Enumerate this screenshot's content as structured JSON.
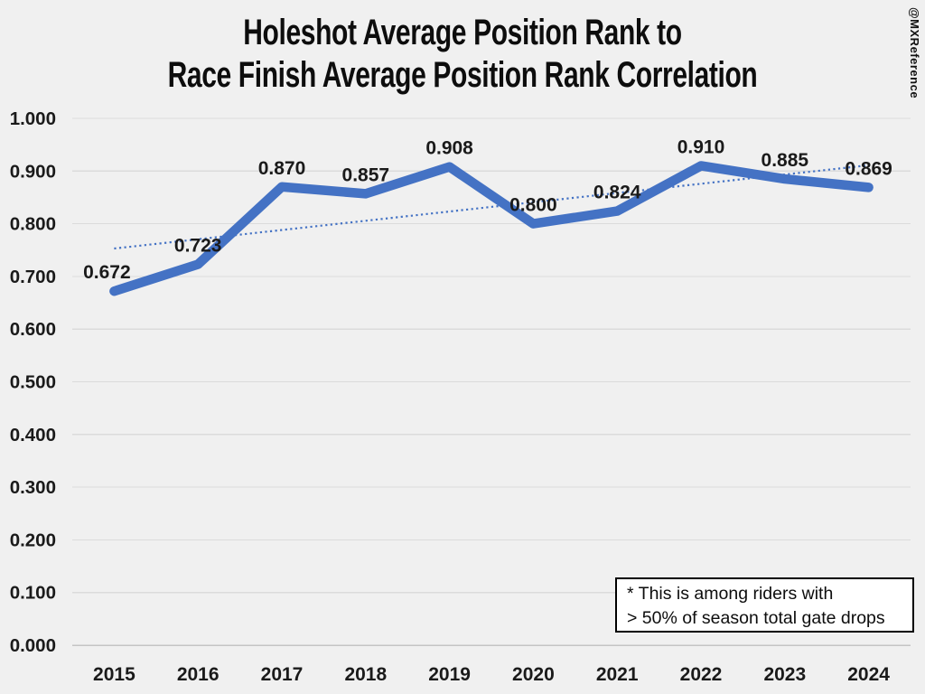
{
  "page": {
    "background": "#F0F0F0"
  },
  "header": {
    "title_line1": "Holeshot Average Position Rank to",
    "title_line2": "Race Finish Average Position Rank Correlation",
    "watermark": "@MXReference"
  },
  "annotation": {
    "line1": "* This is among riders with",
    "line2": "> 50% of season total gate drops"
  },
  "chart_data": {
    "type": "line",
    "title": "Holeshot Average Position Rank to Race Finish Average Position Rank Correlation",
    "categories": [
      "2015",
      "2016",
      "2017",
      "2018",
      "2019",
      "2020",
      "2021",
      "2022",
      "2023",
      "2024"
    ],
    "series": [
      {
        "name": "Holeshot rank to finish rank correlation",
        "values": [
          0.672,
          0.723,
          0.87,
          0.857,
          0.908,
          0.8,
          0.824,
          0.91,
          0.885,
          0.869
        ]
      }
    ],
    "data_labels": [
      "0.672",
      "0.723",
      "0.870",
      "0.857",
      "0.908",
      "0.800",
      "0.824",
      "0.910",
      "0.885",
      "0.869"
    ],
    "xlabel": "",
    "ylabel": "",
    "ylim": [
      0.0,
      1.0
    ],
    "y_tick_step": 0.1,
    "y_tick_labels": [
      "0.000",
      "0.100",
      "0.200",
      "0.300",
      "0.400",
      "0.500",
      "0.600",
      "0.700",
      "0.800",
      "0.900",
      "1.000"
    ],
    "grid": true,
    "legend": false,
    "trendline": {
      "style": "dotted",
      "start_value": 0.753,
      "end_value": 0.911
    },
    "colors": {
      "series_line": "#4472C4",
      "trendline": "#4472C4",
      "gridline": "#DBDBDB",
      "axis_line": "#C4C4C4",
      "text": "#1A1A1A",
      "background": "#F0F0F0",
      "annotation_bg": "#FFFFFF",
      "annotation_border": "#000000"
    }
  }
}
